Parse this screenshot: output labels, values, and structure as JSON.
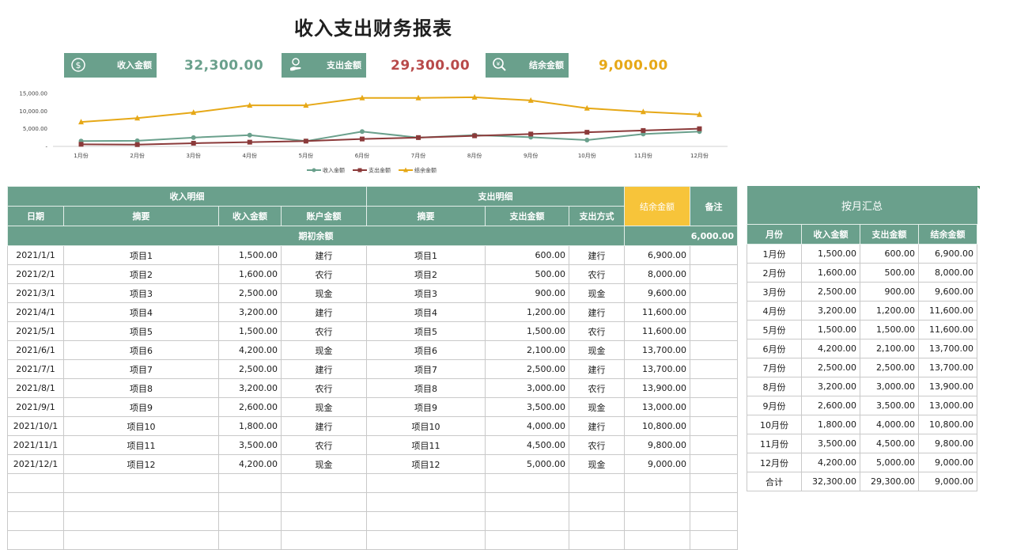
{
  "title": "收入支出财务报表",
  "colors": {
    "income": "#6aa08c",
    "expense": "#8b3a3a",
    "balance": "#e6a817",
    "header_bg": "#6aa08c",
    "balance_header_bg": "#f7c43a"
  },
  "summary": {
    "income": {
      "label": "收入金额",
      "value": "32,300.00",
      "icon": "dollar-coin-icon",
      "color": "#6aa08c"
    },
    "expense": {
      "label": "支出金额",
      "value": "29,300.00",
      "icon": "hand-coin-icon",
      "color": "#b84a4a"
    },
    "balance": {
      "label": "结余金额",
      "value": "9,000.00",
      "icon": "yen-search-icon",
      "color": "#e6a817"
    }
  },
  "chart_data": {
    "type": "line",
    "categories": [
      "1月份",
      "2月份",
      "3月份",
      "4月份",
      "5月份",
      "6月份",
      "7月份",
      "8月份",
      "9月份",
      "10月份",
      "11月份",
      "12月份"
    ],
    "y_ticks": [
      "15,000.00",
      "10,000.00",
      "5,000.00",
      "-"
    ],
    "ylim": [
      0,
      15000
    ],
    "series": [
      {
        "name": "收入金额",
        "color": "#6aa08c",
        "marker": "circle",
        "values": [
          1500,
          1600,
          2500,
          3200,
          1500,
          4200,
          2500,
          3200,
          2600,
          1800,
          3500,
          4200
        ]
      },
      {
        "name": "支出金额",
        "color": "#8b3a3a",
        "marker": "square",
        "values": [
          600,
          500,
          900,
          1200,
          1500,
          2100,
          2500,
          3000,
          3500,
          4000,
          4500,
          5000
        ]
      },
      {
        "name": "结余金额",
        "color": "#e6a817",
        "marker": "triangle",
        "values": [
          6900,
          8000,
          9600,
          11600,
          11600,
          13700,
          13700,
          13900,
          13000,
          10800,
          9800,
          9000
        ]
      }
    ],
    "legend_position": "bottom",
    "grid": false
  },
  "main_table": {
    "group_income": "收入明细",
    "group_expense": "支出明细",
    "balance_header": "结余金额",
    "remark_header": "备注",
    "headers": {
      "date": "日期",
      "income_desc": "摘要",
      "income_amount": "收入金额",
      "account_amount": "账户金额",
      "expense_desc": "摘要",
      "expense_amount": "支出金额",
      "pay_method": "支出方式"
    },
    "opening_label": "期初余额",
    "opening_value": "6,000.00",
    "rows": [
      [
        "2021/1/1",
        "项目1",
        "1,500.00",
        "建行",
        "项目1",
        "600.00",
        "建行",
        "6,900.00",
        ""
      ],
      [
        "2021/2/1",
        "项目2",
        "1,600.00",
        "农行",
        "项目2",
        "500.00",
        "农行",
        "8,000.00",
        ""
      ],
      [
        "2021/3/1",
        "项目3",
        "2,500.00",
        "现金",
        "项目3",
        "900.00",
        "现金",
        "9,600.00",
        ""
      ],
      [
        "2021/4/1",
        "项目4",
        "3,200.00",
        "建行",
        "项目4",
        "1,200.00",
        "建行",
        "11,600.00",
        ""
      ],
      [
        "2021/5/1",
        "项目5",
        "1,500.00",
        "农行",
        "项目5",
        "1,500.00",
        "农行",
        "11,600.00",
        ""
      ],
      [
        "2021/6/1",
        "项目6",
        "4,200.00",
        "现金",
        "项目6",
        "2,100.00",
        "现金",
        "13,700.00",
        ""
      ],
      [
        "2021/7/1",
        "项目7",
        "2,500.00",
        "建行",
        "项目7",
        "2,500.00",
        "建行",
        "13,700.00",
        ""
      ],
      [
        "2021/8/1",
        "项目8",
        "3,200.00",
        "农行",
        "项目8",
        "3,000.00",
        "农行",
        "13,900.00",
        ""
      ],
      [
        "2021/9/1",
        "项目9",
        "2,600.00",
        "现金",
        "项目9",
        "3,500.00",
        "现金",
        "13,000.00",
        ""
      ],
      [
        "2021/10/1",
        "项目10",
        "1,800.00",
        "建行",
        "项目10",
        "4,000.00",
        "建行",
        "10,800.00",
        ""
      ],
      [
        "2021/11/1",
        "项目11",
        "3,500.00",
        "农行",
        "项目11",
        "4,500.00",
        "农行",
        "9,800.00",
        ""
      ],
      [
        "2021/12/1",
        "项目12",
        "4,200.00",
        "现金",
        "项目12",
        "5,000.00",
        "现金",
        "9,000.00",
        ""
      ]
    ],
    "blank_rows": 4
  },
  "monthly_table": {
    "title": "按月汇总",
    "headers": [
      "月份",
      "收入金额",
      "支出金额",
      "结余金额"
    ],
    "rows": [
      [
        "1月份",
        "1,500.00",
        "600.00",
        "6,900.00"
      ],
      [
        "2月份",
        "1,600.00",
        "500.00",
        "8,000.00"
      ],
      [
        "3月份",
        "2,500.00",
        "900.00",
        "9,600.00"
      ],
      [
        "4月份",
        "3,200.00",
        "1,200.00",
        "11,600.00"
      ],
      [
        "5月份",
        "1,500.00",
        "1,500.00",
        "11,600.00"
      ],
      [
        "6月份",
        "4,200.00",
        "2,100.00",
        "13,700.00"
      ],
      [
        "7月份",
        "2,500.00",
        "2,500.00",
        "13,700.00"
      ],
      [
        "8月份",
        "3,200.00",
        "3,000.00",
        "13,900.00"
      ],
      [
        "9月份",
        "2,600.00",
        "3,500.00",
        "13,000.00"
      ],
      [
        "10月份",
        "1,800.00",
        "4,000.00",
        "10,800.00"
      ],
      [
        "11月份",
        "3,500.00",
        "4,500.00",
        "9,800.00"
      ],
      [
        "12月份",
        "4,200.00",
        "5,000.00",
        "9,000.00"
      ]
    ],
    "total": [
      "合计",
      "32,300.00",
      "29,300.00",
      "9,000.00"
    ]
  }
}
